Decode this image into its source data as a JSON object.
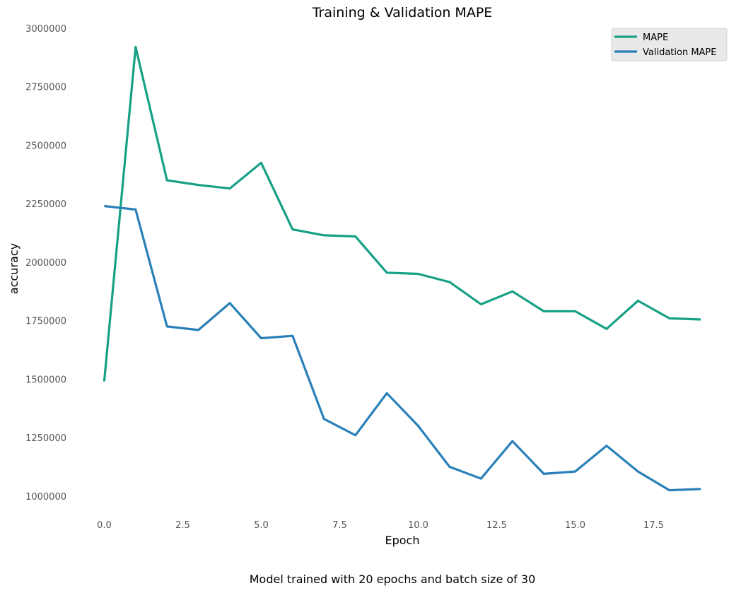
{
  "chart_data": {
    "type": "line",
    "title": "Training & Validation MAPE",
    "xlabel": "Epoch",
    "ylabel": "accuracy",
    "caption": "Model trained with 20 epochs and batch size of 30",
    "x": [
      0,
      1,
      2,
      3,
      4,
      5,
      6,
      7,
      8,
      9,
      10,
      11,
      12,
      13,
      14,
      15,
      16,
      17,
      18,
      19
    ],
    "xlim": [
      -1,
      19.2
    ],
    "ylim": [
      915000,
      3000000
    ],
    "xticks": [
      0.0,
      2.5,
      5.0,
      7.5,
      10.0,
      12.5,
      15.0,
      17.5
    ],
    "xtick_labels": [
      "0.0",
      "2.5",
      "5.0",
      "7.5",
      "10.0",
      "12.5",
      "15.0",
      "17.5"
    ],
    "yticks": [
      1000000,
      1250000,
      1500000,
      1750000,
      2000000,
      2250000,
      2500000,
      2750000,
      3000000
    ],
    "ytick_labels": [
      "1000000",
      "1250000",
      "1500000",
      "1750000",
      "2000000",
      "2250000",
      "2500000",
      "2750000",
      "3000000"
    ],
    "grid": false,
    "legend_position": "top-right",
    "series": [
      {
        "name": "MAPE",
        "color": "#16a085",
        "values": [
          1490000,
          2920000,
          2350000,
          2330000,
          2315000,
          2425000,
          2140000,
          2115000,
          2110000,
          1955000,
          1950000,
          1915000,
          1820000,
          1875000,
          1790000,
          1790000,
          1715000,
          1835000,
          1760000,
          1755000
        ]
      },
      {
        "name": "Validation MAPE",
        "color": "#2980b9",
        "values": [
          2240000,
          2225000,
          1725000,
          1710000,
          1825000,
          1675000,
          1685000,
          1330000,
          1260000,
          1440000,
          1300000,
          1125000,
          1075000,
          1235000,
          1095000,
          1105000,
          1215000,
          1105000,
          1025000,
          1030000
        ]
      }
    ]
  },
  "legend_bg": "#e9e9e9",
  "legend_border": "#d5d5d5"
}
